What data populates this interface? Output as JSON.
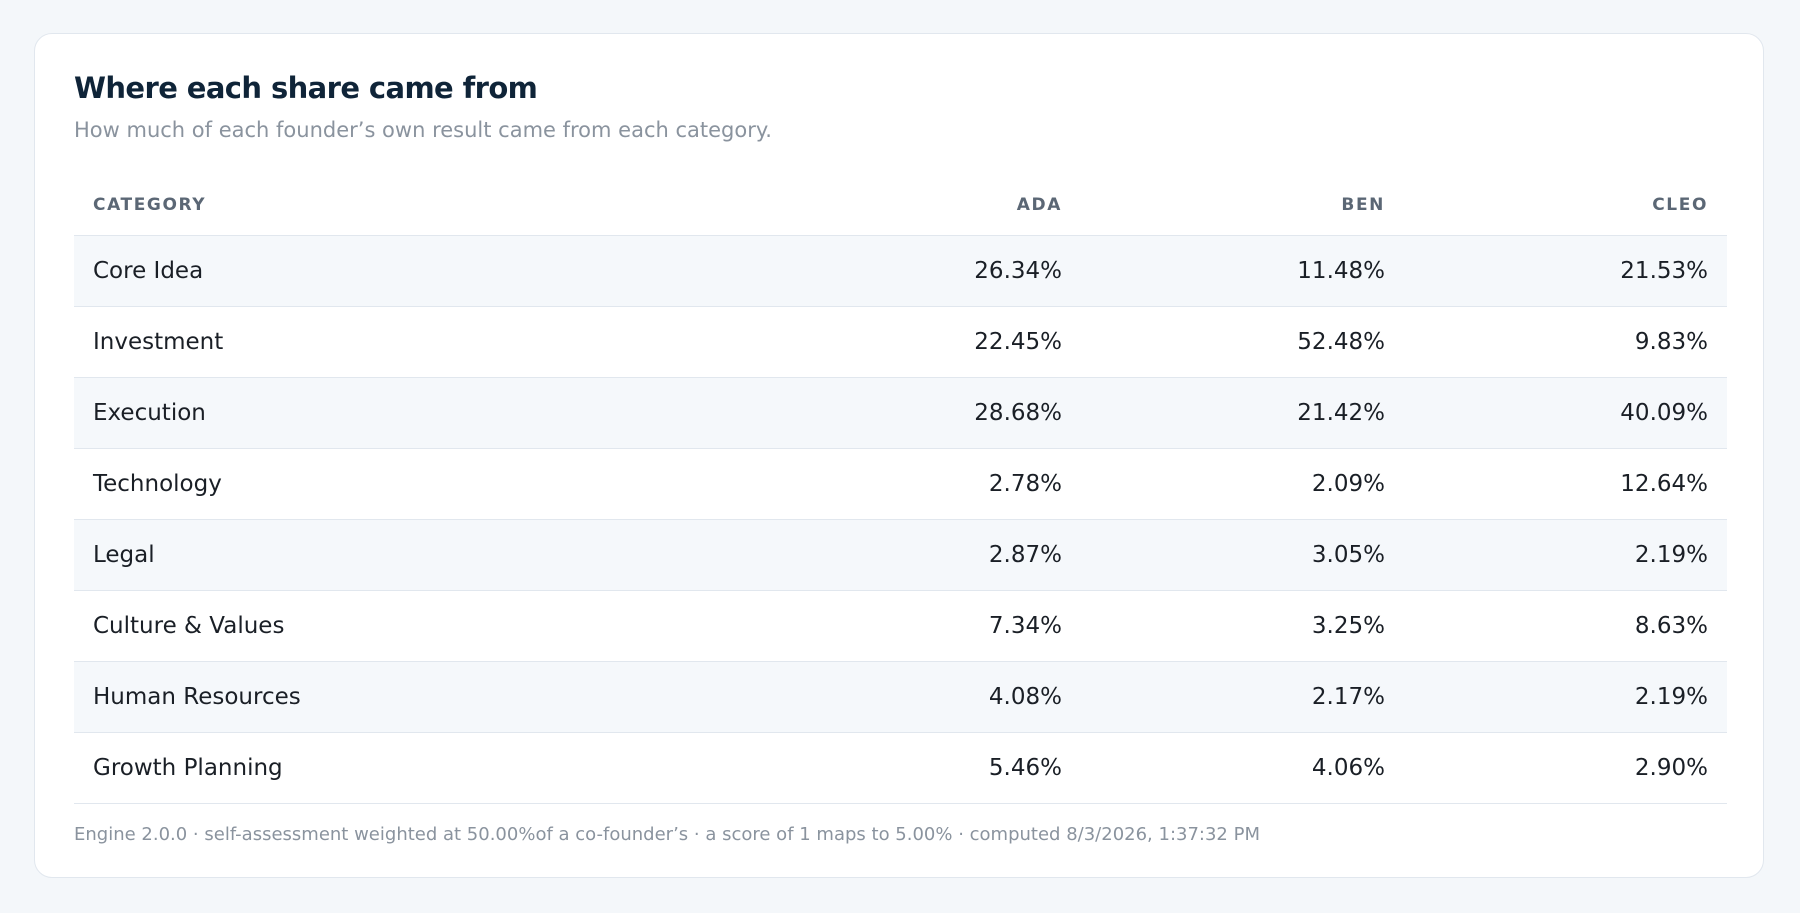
{
  "card": {
    "title": "Where each share came from",
    "subtitle": "How much of each founder’s own result came from each category."
  },
  "table": {
    "headers": {
      "category": "CATEGORY",
      "ada": "ADA",
      "ben": "BEN",
      "cleo": "CLEO"
    },
    "rows": [
      {
        "category": "Core Idea",
        "ada": "26.34%",
        "ben": "11.48%",
        "cleo": "21.53%"
      },
      {
        "category": "Investment",
        "ada": "22.45%",
        "ben": "52.48%",
        "cleo": "9.83%"
      },
      {
        "category": "Execution",
        "ada": "28.68%",
        "ben": "21.42%",
        "cleo": "40.09%"
      },
      {
        "category": "Technology",
        "ada": "2.78%",
        "ben": "2.09%",
        "cleo": "12.64%"
      },
      {
        "category": "Legal",
        "ada": "2.87%",
        "ben": "3.05%",
        "cleo": "2.19%"
      },
      {
        "category": "Culture & Values",
        "ada": "7.34%",
        "ben": "3.25%",
        "cleo": "8.63%"
      },
      {
        "category": "Human Resources",
        "ada": "4.08%",
        "ben": "2.17%",
        "cleo": "2.19%"
      },
      {
        "category": "Growth Planning",
        "ada": "5.46%",
        "ben": "4.06%",
        "cleo": "2.90%"
      }
    ]
  },
  "footer": {
    "text": "Engine 2.0.0 · self-assessment weighted at 50.00%of a co-founder’s · a score of 1 maps to 5.00% · computed 8/3/2026, 1:37:32 PM"
  },
  "colors": {
    "title": "#0f2438",
    "stripe": "#f5f8fb",
    "border": "#e1e7ee"
  }
}
